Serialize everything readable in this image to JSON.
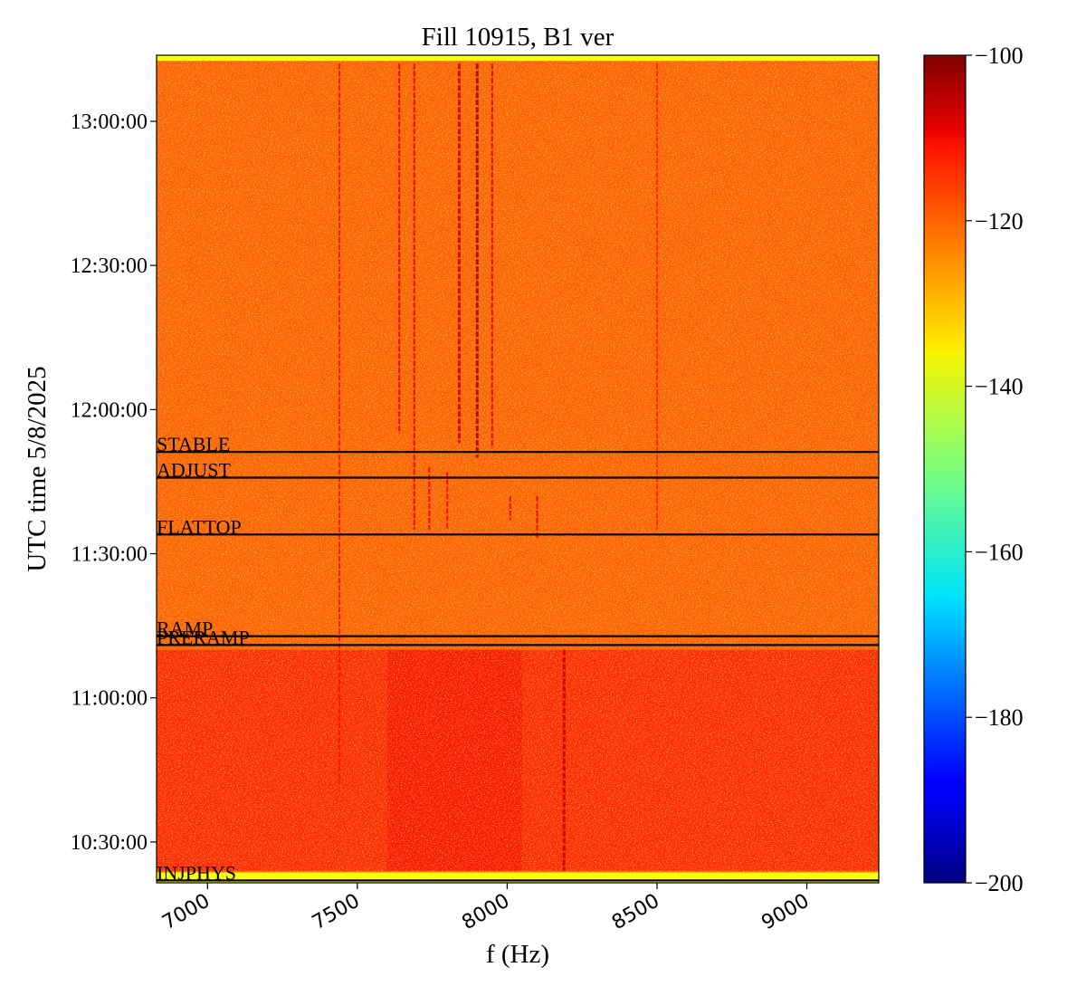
{
  "chart_data": {
    "type": "heatmap",
    "title": "Fill 10915, B1 ver",
    "xlabel": "f (Hz)",
    "ylabel": "UTC time 5/8/2025",
    "xlim": [
      6830,
      9240
    ],
    "ylim": [
      "10:21:30",
      "13:13:45"
    ],
    "x_ticks": [
      7000,
      7500,
      8000,
      8500,
      9000
    ],
    "x_tick_labels": [
      "7000",
      "7500",
      "8000",
      "8500",
      "9000"
    ],
    "y_ticks": [
      "10:30:00",
      "11:00:00",
      "11:30:00",
      "12:00:00",
      "12:30:00",
      "13:00:00"
    ],
    "y_tick_labels": [
      "10:30:00",
      "11:00:00",
      "11:30:00",
      "12:00:00",
      "12:30:00",
      "13:00:00"
    ],
    "grid": false,
    "colormap": "jet",
    "colorbar": {
      "min": -200,
      "max": -100,
      "ticks": [
        -200,
        -180,
        -160,
        -140,
        -120,
        -100
      ],
      "tick_labels": [
        "−200",
        "−180",
        "−160",
        "−140",
        "−120",
        "−100"
      ]
    },
    "background_level_dB": -122,
    "data_time_range": [
      "10:23:40",
      "13:12:35"
    ],
    "edge_band_level_dB": -138,
    "event_markers": [
      {
        "label": "STABLE",
        "time": "11:51:10"
      },
      {
        "label": "ADJUST",
        "time": "11:45:50"
      },
      {
        "label": "FLATTOP",
        "time": "11:34:00"
      },
      {
        "label": "RAMP",
        "time": "11:12:50"
      },
      {
        "label": "PRERAMP",
        "time": "11:11:00"
      },
      {
        "label": "INJPHYS",
        "time": "10:22:00"
      }
    ],
    "spectral_lines": [
      {
        "f": 7440,
        "start": "10:42:00",
        "end": "13:12:00",
        "level_dB": -114
      },
      {
        "f": 7640,
        "start": "11:55:00",
        "end": "13:12:00",
        "level_dB": -110
      },
      {
        "f": 7690,
        "start": "11:35:00",
        "end": "13:12:00",
        "level_dB": -110
      },
      {
        "f": 7740,
        "start": "11:35:00",
        "end": "11:48:00",
        "level_dB": -112
      },
      {
        "f": 7800,
        "start": "11:35:00",
        "end": "11:47:00",
        "level_dB": -113
      },
      {
        "f": 7840,
        "start": "11:53:00",
        "end": "13:12:00",
        "level_dB": -108
      },
      {
        "f": 7900,
        "start": "11:50:00",
        "end": "13:12:00",
        "level_dB": -104
      },
      {
        "f": 7950,
        "start": "11:52:00",
        "end": "13:12:00",
        "level_dB": -110
      },
      {
        "f": 8010,
        "start": "11:37:00",
        "end": "11:42:00",
        "level_dB": -110
      },
      {
        "f": 8100,
        "start": "11:33:00",
        "end": "11:42:00",
        "level_dB": -110
      },
      {
        "f": 8190,
        "start": "10:24:00",
        "end": "11:10:00",
        "level_dB": -108
      },
      {
        "f": 8500,
        "start": "11:35:00",
        "end": "13:12:00",
        "level_dB": -116
      }
    ],
    "noisy_region": {
      "start": "10:24:00",
      "end": "11:10:00",
      "level_dB": -116,
      "burst_f_range": [
        7600,
        8050
      ]
    }
  }
}
